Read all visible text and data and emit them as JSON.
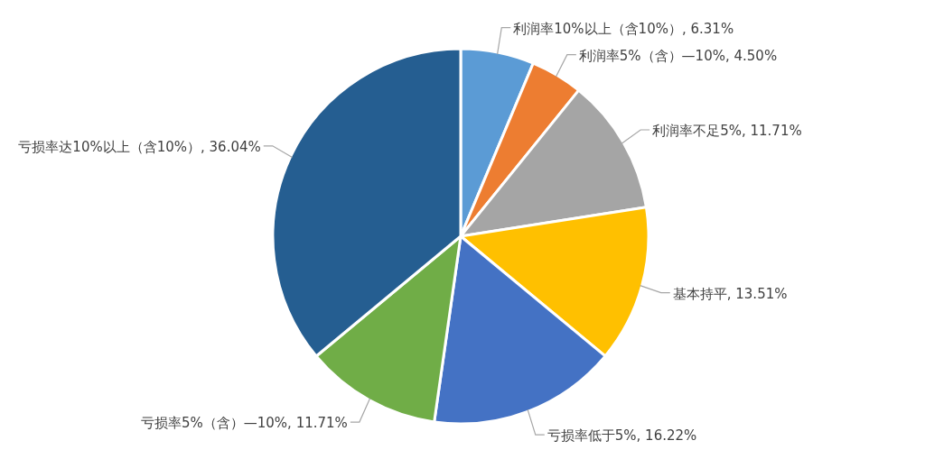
{
  "chart_data": {
    "type": "pie",
    "categories": [
      "利润率10%以上（含10%）",
      "利润率5%（含）—10%",
      "利润率不足5%",
      "基本持平",
      "亏损率低于5%",
      "亏损率5%（含）—10%",
      "亏损率达10%以上（含10%）"
    ],
    "values": [
      6.31,
      4.5,
      11.71,
      13.51,
      16.22,
      11.71,
      36.04
    ],
    "value_labels": [
      "6.31%",
      "4.50%",
      "11.71%",
      "13.51%",
      "16.22%",
      "11.71%",
      "36.04%"
    ],
    "colors": [
      "#5b9bd5",
      "#ed7d31",
      "#a5a5a5",
      "#ffc000",
      "#4472c4",
      "#70ad47",
      "#255e91"
    ]
  }
}
